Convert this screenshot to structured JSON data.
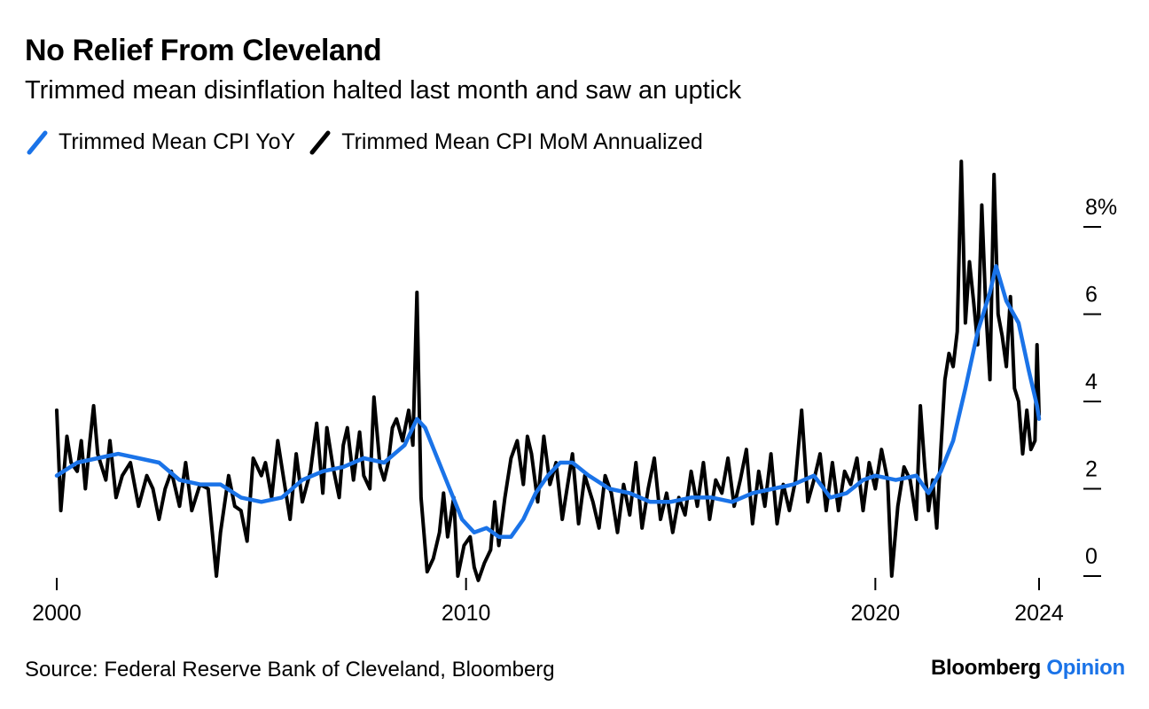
{
  "title": "No Relief From Cleveland",
  "subtitle": "Trimmed mean disinflation halted last month and saw an uptick",
  "source": "Source: Federal Reserve Bank of Cleveland, Bloomberg",
  "brand": {
    "name": "Bloomberg",
    "suffix": "Opinion"
  },
  "colors": {
    "yoy": "#1a73e8",
    "mom": "#000000",
    "brand_accent": "#1a73e8"
  },
  "chart_data": {
    "type": "line",
    "xlabel": "",
    "ylabel": "",
    "xlim": [
      2000,
      2024
    ],
    "ylim": [
      0,
      8
    ],
    "x_ticks": [
      {
        "value": 2000,
        "label": "2000"
      },
      {
        "value": 2010,
        "label": "2010"
      },
      {
        "value": 2020,
        "label": "2020"
      },
      {
        "value": 2024,
        "label": "2024"
      }
    ],
    "y_ticks": [
      {
        "value": 0,
        "label": "0"
      },
      {
        "value": 2,
        "label": "2"
      },
      {
        "value": 4,
        "label": "4"
      },
      {
        "value": 6,
        "label": "6"
      },
      {
        "value": 8,
        "label": "8%"
      }
    ],
    "y_axis_side": "right",
    "grid": false,
    "legend_position": "top-left",
    "series": [
      {
        "name": "Trimmed Mean CPI YoY",
        "color": "#1a73e8",
        "points": [
          [
            2000.0,
            2.3
          ],
          [
            2000.5,
            2.6
          ],
          [
            2001.0,
            2.7
          ],
          [
            2001.5,
            2.8
          ],
          [
            2002.0,
            2.7
          ],
          [
            2002.5,
            2.6
          ],
          [
            2003.0,
            2.2
          ],
          [
            2003.5,
            2.1
          ],
          [
            2004.0,
            2.1
          ],
          [
            2004.5,
            1.8
          ],
          [
            2005.0,
            1.7
          ],
          [
            2005.5,
            1.8
          ],
          [
            2006.0,
            2.2
          ],
          [
            2006.5,
            2.4
          ],
          [
            2007.0,
            2.5
          ],
          [
            2007.5,
            2.7
          ],
          [
            2008.0,
            2.6
          ],
          [
            2008.5,
            3.0
          ],
          [
            2008.8,
            3.6
          ],
          [
            2009.0,
            3.4
          ],
          [
            2009.3,
            2.7
          ],
          [
            2009.6,
            2.0
          ],
          [
            2009.9,
            1.3
          ],
          [
            2010.2,
            1.0
          ],
          [
            2010.5,
            1.1
          ],
          [
            2010.8,
            0.9
          ],
          [
            2011.1,
            0.9
          ],
          [
            2011.4,
            1.3
          ],
          [
            2011.7,
            1.9
          ],
          [
            2012.0,
            2.3
          ],
          [
            2012.3,
            2.6
          ],
          [
            2012.6,
            2.6
          ],
          [
            2013.0,
            2.3
          ],
          [
            2013.5,
            2.0
          ],
          [
            2014.0,
            1.9
          ],
          [
            2014.5,
            1.7
          ],
          [
            2015.0,
            1.7
          ],
          [
            2015.5,
            1.8
          ],
          [
            2016.0,
            1.8
          ],
          [
            2016.5,
            1.7
          ],
          [
            2017.0,
            1.9
          ],
          [
            2017.5,
            2.0
          ],
          [
            2018.0,
            2.1
          ],
          [
            2018.5,
            2.3
          ],
          [
            2018.9,
            1.8
          ],
          [
            2019.3,
            1.9
          ],
          [
            2019.7,
            2.2
          ],
          [
            2020.0,
            2.3
          ],
          [
            2020.5,
            2.2
          ],
          [
            2021.0,
            2.3
          ],
          [
            2021.3,
            1.9
          ],
          [
            2021.6,
            2.4
          ],
          [
            2021.9,
            3.1
          ],
          [
            2022.2,
            4.3
          ],
          [
            2022.5,
            5.6
          ],
          [
            2022.8,
            6.5
          ],
          [
            2022.95,
            7.1
          ],
          [
            2023.2,
            6.3
          ],
          [
            2023.5,
            5.8
          ],
          [
            2023.75,
            4.7
          ],
          [
            2023.95,
            3.9
          ],
          [
            2024.0,
            3.6
          ]
        ]
      },
      {
        "name": "Trimmed Mean CPI MoM Annualized",
        "color": "#000000",
        "points": [
          [
            2000.0,
            3.8
          ],
          [
            2000.1,
            1.5
          ],
          [
            2000.25,
            3.2
          ],
          [
            2000.35,
            2.6
          ],
          [
            2000.5,
            2.4
          ],
          [
            2000.6,
            3.1
          ],
          [
            2000.7,
            2.0
          ],
          [
            2000.8,
            3.0
          ],
          [
            2000.9,
            3.9
          ],
          [
            2001.0,
            2.8
          ],
          [
            2001.2,
            2.2
          ],
          [
            2001.3,
            3.1
          ],
          [
            2001.45,
            1.8
          ],
          [
            2001.6,
            2.3
          ],
          [
            2001.8,
            2.6
          ],
          [
            2002.0,
            1.6
          ],
          [
            2002.2,
            2.3
          ],
          [
            2002.35,
            2.0
          ],
          [
            2002.5,
            1.3
          ],
          [
            2002.65,
            2.0
          ],
          [
            2002.8,
            2.4
          ],
          [
            2003.0,
            1.6
          ],
          [
            2003.15,
            2.6
          ],
          [
            2003.3,
            1.5
          ],
          [
            2003.5,
            2.1
          ],
          [
            2003.7,
            2.0
          ],
          [
            2003.9,
            0.0
          ],
          [
            2004.0,
            1.0
          ],
          [
            2004.2,
            2.3
          ],
          [
            2004.35,
            1.6
          ],
          [
            2004.5,
            1.5
          ],
          [
            2004.65,
            0.8
          ],
          [
            2004.8,
            2.7
          ],
          [
            2005.0,
            2.3
          ],
          [
            2005.1,
            2.6
          ],
          [
            2005.25,
            1.8
          ],
          [
            2005.4,
            3.1
          ],
          [
            2005.55,
            2.2
          ],
          [
            2005.7,
            1.3
          ],
          [
            2005.85,
            2.8
          ],
          [
            2006.0,
            1.7
          ],
          [
            2006.2,
            2.4
          ],
          [
            2006.35,
            3.5
          ],
          [
            2006.5,
            1.9
          ],
          [
            2006.6,
            3.4
          ],
          [
            2006.75,
            2.5
          ],
          [
            2006.9,
            1.8
          ],
          [
            2007.0,
            3.0
          ],
          [
            2007.1,
            3.4
          ],
          [
            2007.25,
            2.2
          ],
          [
            2007.4,
            3.3
          ],
          [
            2007.5,
            2.3
          ],
          [
            2007.65,
            2.0
          ],
          [
            2007.75,
            4.1
          ],
          [
            2007.9,
            2.5
          ],
          [
            2008.0,
            2.2
          ],
          [
            2008.1,
            2.6
          ],
          [
            2008.2,
            3.4
          ],
          [
            2008.3,
            3.6
          ],
          [
            2008.45,
            3.1
          ],
          [
            2008.6,
            3.8
          ],
          [
            2008.7,
            3.0
          ],
          [
            2008.8,
            6.5
          ],
          [
            2008.9,
            1.8
          ],
          [
            2009.05,
            0.1
          ],
          [
            2009.2,
            0.4
          ],
          [
            2009.35,
            1.0
          ],
          [
            2009.45,
            1.9
          ],
          [
            2009.55,
            0.9
          ],
          [
            2009.7,
            1.8
          ],
          [
            2009.8,
            0.0
          ],
          [
            2009.95,
            0.7
          ],
          [
            2010.1,
            0.9
          ],
          [
            2010.2,
            0.2
          ],
          [
            2010.3,
            -0.1
          ],
          [
            2010.45,
            0.3
          ],
          [
            2010.6,
            0.6
          ],
          [
            2010.7,
            1.7
          ],
          [
            2010.8,
            0.7
          ],
          [
            2010.95,
            1.8
          ],
          [
            2011.1,
            2.7
          ],
          [
            2011.25,
            3.1
          ],
          [
            2011.4,
            2.1
          ],
          [
            2011.5,
            3.2
          ],
          [
            2011.6,
            2.8
          ],
          [
            2011.75,
            1.7
          ],
          [
            2011.9,
            3.2
          ],
          [
            2012.05,
            2.1
          ],
          [
            2012.2,
            2.6
          ],
          [
            2012.35,
            1.3
          ],
          [
            2012.5,
            2.2
          ],
          [
            2012.6,
            2.8
          ],
          [
            2012.75,
            1.2
          ],
          [
            2012.9,
            2.3
          ],
          [
            2013.1,
            1.7
          ],
          [
            2013.25,
            1.1
          ],
          [
            2013.4,
            2.3
          ],
          [
            2013.55,
            1.9
          ],
          [
            2013.7,
            1.0
          ],
          [
            2013.85,
            2.1
          ],
          [
            2014.0,
            1.4
          ],
          [
            2014.15,
            2.6
          ],
          [
            2014.3,
            1.1
          ],
          [
            2014.45,
            2.0
          ],
          [
            2014.6,
            2.7
          ],
          [
            2014.75,
            1.3
          ],
          [
            2014.9,
            1.9
          ],
          [
            2015.05,
            1.0
          ],
          [
            2015.2,
            1.8
          ],
          [
            2015.35,
            1.4
          ],
          [
            2015.5,
            2.4
          ],
          [
            2015.65,
            1.6
          ],
          [
            2015.8,
            2.6
          ],
          [
            2015.95,
            1.3
          ],
          [
            2016.1,
            2.2
          ],
          [
            2016.25,
            1.9
          ],
          [
            2016.4,
            2.7
          ],
          [
            2016.55,
            1.6
          ],
          [
            2016.7,
            2.2
          ],
          [
            2016.85,
            2.9
          ],
          [
            2017.0,
            1.2
          ],
          [
            2017.15,
            2.4
          ],
          [
            2017.3,
            1.6
          ],
          [
            2017.45,
            2.8
          ],
          [
            2017.6,
            1.2
          ],
          [
            2017.75,
            2.1
          ],
          [
            2017.9,
            1.5
          ],
          [
            2018.05,
            2.2
          ],
          [
            2018.2,
            3.8
          ],
          [
            2018.35,
            1.7
          ],
          [
            2018.5,
            2.2
          ],
          [
            2018.65,
            2.8
          ],
          [
            2018.8,
            1.5
          ],
          [
            2018.95,
            2.6
          ],
          [
            2019.1,
            1.5
          ],
          [
            2019.25,
            2.4
          ],
          [
            2019.4,
            2.1
          ],
          [
            2019.55,
            2.7
          ],
          [
            2019.7,
            1.5
          ],
          [
            2019.85,
            2.6
          ],
          [
            2020.0,
            2.0
          ],
          [
            2020.15,
            2.9
          ],
          [
            2020.3,
            2.2
          ],
          [
            2020.4,
            0.0
          ],
          [
            2020.55,
            1.6
          ],
          [
            2020.7,
            2.5
          ],
          [
            2020.85,
            2.2
          ],
          [
            2021.0,
            1.3
          ],
          [
            2021.1,
            3.9
          ],
          [
            2021.2,
            2.6
          ],
          [
            2021.3,
            1.5
          ],
          [
            2021.4,
            2.2
          ],
          [
            2021.5,
            1.1
          ],
          [
            2021.6,
            2.9
          ],
          [
            2021.7,
            4.5
          ],
          [
            2021.8,
            5.1
          ],
          [
            2021.9,
            4.8
          ],
          [
            2022.0,
            5.6
          ],
          [
            2022.1,
            9.5
          ],
          [
            2022.2,
            5.8
          ],
          [
            2022.3,
            7.2
          ],
          [
            2022.4,
            6.3
          ],
          [
            2022.5,
            5.3
          ],
          [
            2022.6,
            8.5
          ],
          [
            2022.7,
            6.1
          ],
          [
            2022.8,
            4.5
          ],
          [
            2022.9,
            9.2
          ],
          [
            2023.0,
            6.0
          ],
          [
            2023.1,
            5.5
          ],
          [
            2023.2,
            4.8
          ],
          [
            2023.3,
            6.4
          ],
          [
            2023.4,
            4.3
          ],
          [
            2023.5,
            4.0
          ],
          [
            2023.6,
            2.8
          ],
          [
            2023.7,
            3.8
          ],
          [
            2023.8,
            2.9
          ],
          [
            2023.9,
            3.1
          ],
          [
            2023.95,
            5.3
          ],
          [
            2024.0,
            3.7
          ]
        ]
      }
    ]
  }
}
